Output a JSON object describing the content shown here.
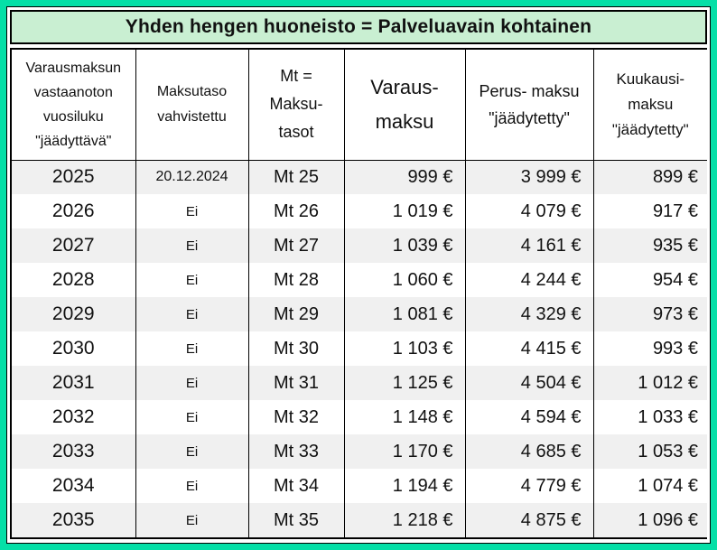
{
  "title": "Yhden hengen huoneisto = Palveluavain kohtainen",
  "colors": {
    "frame_teal": "#05DFA7",
    "title_green": "#C9EFD2",
    "stripe_gray": "#F0F0F0",
    "border_black": "#000000"
  },
  "table": {
    "headers": [
      {
        "lines": [
          "Varausmaksun",
          "vastaanoton",
          "vuosiluku",
          "\"jäädyttävä\""
        ]
      },
      {
        "lines": [
          "Maksutaso",
          "vahvistettu"
        ]
      },
      {
        "lines": [
          "Mt =",
          "Maksu-",
          "tasot"
        ]
      },
      {
        "lines": [
          "Varaus-",
          "maksu"
        ]
      },
      {
        "lines": [
          "Perus- maksu",
          "\"jäädytetty\""
        ]
      },
      {
        "lines": [
          "Kuukausi-",
          "maksu",
          "\"jäädytetty\""
        ]
      }
    ],
    "rows": [
      {
        "year": "2025",
        "confirmed": "20.12.2024",
        "mt": "Mt 25",
        "varausmaksu": "999 €",
        "perusmaksu": "3 999 €",
        "kuukausimaksu": "899 €"
      },
      {
        "year": "2026",
        "confirmed": "Ei",
        "mt": "Mt 26",
        "varausmaksu": "1 019 €",
        "perusmaksu": "4 079 €",
        "kuukausimaksu": "917 €"
      },
      {
        "year": "2027",
        "confirmed": "Ei",
        "mt": "Mt 27",
        "varausmaksu": "1 039 €",
        "perusmaksu": "4 161 €",
        "kuukausimaksu": "935 €"
      },
      {
        "year": "2028",
        "confirmed": "Ei",
        "mt": "Mt 28",
        "varausmaksu": "1 060 €",
        "perusmaksu": "4 244 €",
        "kuukausimaksu": "954 €"
      },
      {
        "year": "2029",
        "confirmed": "Ei",
        "mt": "Mt 29",
        "varausmaksu": "1 081 €",
        "perusmaksu": "4 329 €",
        "kuukausimaksu": "973 €"
      },
      {
        "year": "2030",
        "confirmed": "Ei",
        "mt": "Mt 30",
        "varausmaksu": "1 103 €",
        "perusmaksu": "4 415 €",
        "kuukausimaksu": "993 €"
      },
      {
        "year": "2031",
        "confirmed": "Ei",
        "mt": "Mt 31",
        "varausmaksu": "1 125 €",
        "perusmaksu": "4 504 €",
        "kuukausimaksu": "1 012 €"
      },
      {
        "year": "2032",
        "confirmed": "Ei",
        "mt": "Mt 32",
        "varausmaksu": "1 148 €",
        "perusmaksu": "4 594 €",
        "kuukausimaksu": "1 033 €"
      },
      {
        "year": "2033",
        "confirmed": "Ei",
        "mt": "Mt 33",
        "varausmaksu": "1 170 €",
        "perusmaksu": "4 685 €",
        "kuukausimaksu": "1 053 €"
      },
      {
        "year": "2034",
        "confirmed": "Ei",
        "mt": "Mt 34",
        "varausmaksu": "1 194 €",
        "perusmaksu": "4 779 €",
        "kuukausimaksu": "1 074 €"
      },
      {
        "year": "2035",
        "confirmed": "Ei",
        "mt": "Mt 35",
        "varausmaksu": "1 218 €",
        "perusmaksu": "4 875 €",
        "kuukausimaksu": "1 096 €"
      }
    ]
  }
}
